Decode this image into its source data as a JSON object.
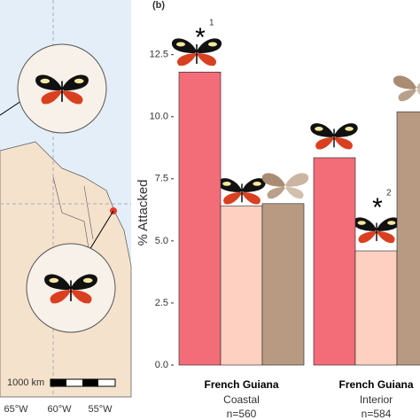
{
  "panel_label": "(b)",
  "map": {
    "scale_label": "1000 km",
    "lon_labels": [
      "65°W",
      "60°W",
      "55°W"
    ]
  },
  "chart_data": {
    "type": "bar",
    "y_label": "% Attacked",
    "categories": [
      "French Guiana",
      "French Guiana"
    ],
    "sublabels": [
      "Coastal",
      "Interior"
    ],
    "n_labels": [
      "n=560",
      "n=584"
    ],
    "series": [
      {
        "color": "#f26d78",
        "values": [
          11.8,
          8.35
        ]
      },
      {
        "color": "#fdd0c2",
        "values": [
          6.4,
          4.6
        ]
      },
      {
        "color": "#b89a82",
        "values": [
          6.5,
          10.2
        ]
      }
    ],
    "ylim": [
      0,
      14.7
    ],
    "yticks": [
      {
        "value": 0,
        "label": "0.0"
      },
      2.5,
      {
        "value": 5,
        "label": "5.0"
      },
      7.5,
      {
        "value": 10,
        "label": "10.0"
      },
      12.5
    ],
    "annotations": [
      {
        "text": "*",
        "sup": "1"
      },
      {
        "text": "*",
        "sup": "2"
      }
    ]
  }
}
